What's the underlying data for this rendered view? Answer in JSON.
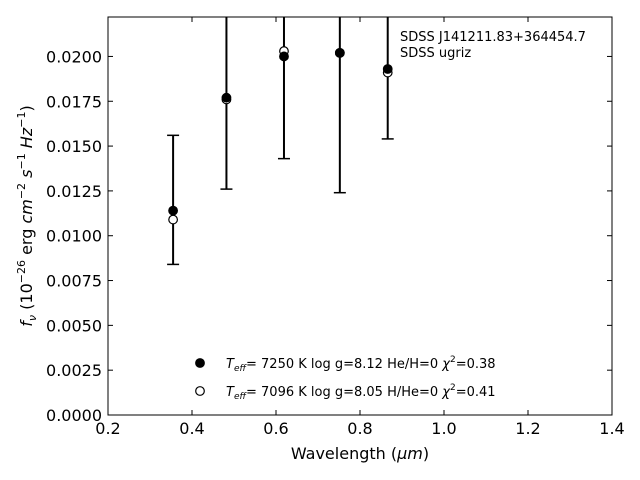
{
  "chart_data": {
    "type": "scatter",
    "xlabel_prefix": "Wavelength (",
    "xlabel_unit": "μm",
    "xlabel_suffix": ")",
    "ylabel": "f_ν (10^-26 erg cm^-2 s^-1 Hz^-1)",
    "xlim": [
      0.2,
      1.4
    ],
    "ylim": [
      0.0,
      0.0222
    ],
    "x_ticks": [
      0.2,
      0.4,
      0.6,
      0.8,
      1.0,
      1.2,
      1.4
    ],
    "x_tick_labels": [
      "0.2",
      "0.4",
      "0.6",
      "0.8",
      "1.0",
      "1.2",
      "1.4"
    ],
    "y_ticks": [
      0.0,
      0.0025,
      0.005,
      0.0075,
      0.01,
      0.0125,
      0.015,
      0.0175,
      0.02
    ],
    "y_tick_labels": [
      "0.0000",
      "0.0025",
      "0.0050",
      "0.0075",
      "0.0100",
      "0.0125",
      "0.0150",
      "0.0175",
      "0.0200"
    ],
    "grid": false,
    "annotation": [
      "SDSS J141211.83+364454.7",
      "SDSS ugriz"
    ],
    "observed": {
      "x": [
        0.355,
        0.482,
        0.619,
        0.752,
        0.866
      ],
      "y": [
        0.0114,
        0.0177,
        0.02,
        0.0202,
        0.0193
      ],
      "err_low": [
        0.0084,
        0.0126,
        0.0143,
        0.0124,
        0.0154
      ],
      "err_high": [
        0.0156,
        0.023,
        0.023,
        0.023,
        0.023
      ]
    },
    "series": [
      {
        "name": "T_eff= 7250 K log g=8.12 He/H=0 χ²=0.38",
        "label": {
          "T": "T",
          "sub": "eff",
          "rest": "=  7250 K  log g=8.12  He/H=0  χ",
          "sup": "2",
          "end": "=0.38"
        },
        "marker": "filled-circle",
        "x": [
          0.355,
          0.482,
          0.619,
          0.752,
          0.866
        ],
        "y": [
          0.0114,
          0.0177,
          0.02,
          0.0202,
          0.0193
        ]
      },
      {
        "name": "T_eff= 7096 K log g=8.05 H/He=0 χ²=0.41",
        "label": {
          "T": "T",
          "sub": "eff",
          "rest": "=  7096 K  log g=8.05  H/He=0  χ",
          "sup": "2",
          "end": "=0.41"
        },
        "marker": "open-circle",
        "x": [
          0.355,
          0.482,
          0.619,
          0.752,
          0.866
        ],
        "y": [
          0.0109,
          0.0176,
          0.0203,
          0.0202,
          0.0191
        ]
      }
    ],
    "legend_location": "lower-center"
  }
}
